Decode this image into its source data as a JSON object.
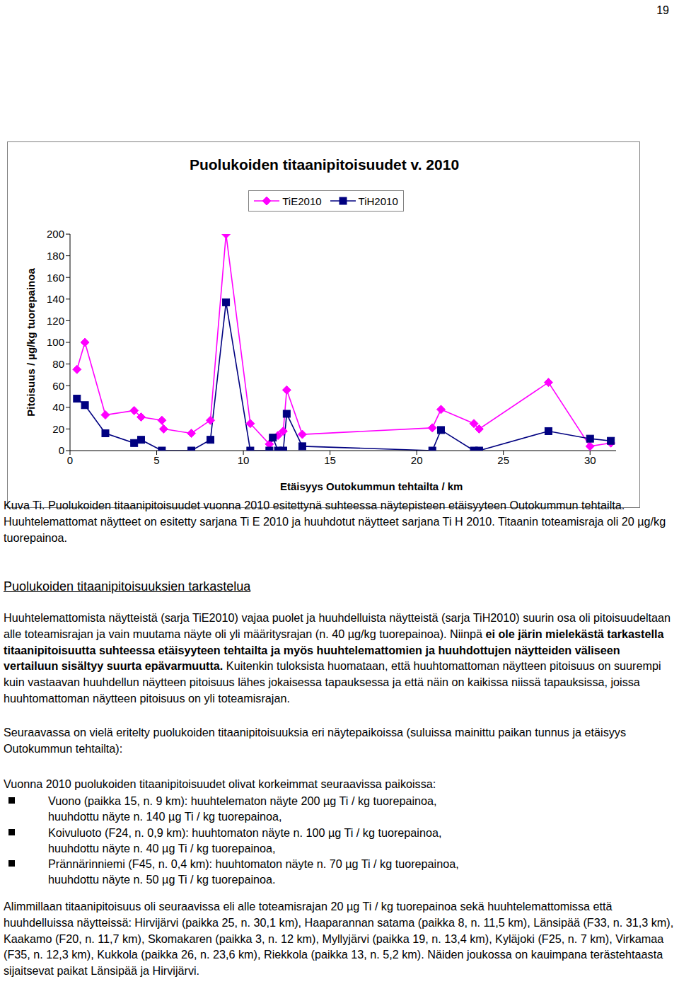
{
  "page_number": "19",
  "chart_data": {
    "type": "line",
    "title": "Puolukoiden titaanipitoisuudet v. 2010",
    "x_label": "Etäisyys Outokummun tehtailta / km",
    "y_label": "Pitoisuus / µg/kg tuorepainoa",
    "xlim": [
      0,
      31.5
    ],
    "xticks": [
      0,
      5,
      10,
      15,
      20,
      25,
      30
    ],
    "ylim": [
      0,
      200
    ],
    "yticks": [
      0,
      20,
      40,
      60,
      80,
      100,
      120,
      140,
      160,
      180,
      200
    ],
    "grid": false,
    "legend": "top",
    "series": [
      {
        "name": "TiE2010",
        "color": "#ff00ff",
        "marker": "diamond",
        "x": [
          0.4,
          0.86,
          2.04,
          3.7,
          4.1,
          5.3,
          5.4,
          7.0,
          8.1,
          9.0,
          10.4,
          11.5,
          12.0,
          12.3,
          12.5,
          13.4,
          20.9,
          21.4,
          23.3,
          23.6,
          27.6,
          30.0,
          31.2
        ],
        "values": [
          75,
          100,
          33,
          37,
          31,
          28,
          20,
          16,
          28,
          200,
          25,
          6,
          14,
          18,
          56,
          15,
          21,
          38,
          25,
          20,
          63,
          4,
          7
        ]
      },
      {
        "name": "TiH2010",
        "color": "#000080",
        "marker": "square",
        "x": [
          0.4,
          0.86,
          2.04,
          3.7,
          4.1,
          5.3,
          7.0,
          8.1,
          9.0,
          10.4,
          11.5,
          11.7,
          12.0,
          12.3,
          12.5,
          13.4,
          20.9,
          21.4,
          23.3,
          23.6,
          27.6,
          30.0,
          31.2
        ],
        "values": [
          48,
          42,
          16,
          7,
          10,
          0,
          0,
          10,
          137,
          0,
          0,
          12,
          0,
          0,
          34,
          4,
          0,
          19,
          0,
          0,
          18,
          11,
          9
        ]
      }
    ]
  },
  "caption": "Kuva Ti. Puolukoiden titaanipitoisuudet vuonna 2010 esitettynä suhteessa näytepisteen etäisyyteen Outokummun tehtailta. Huuhtelemattomat näytteet on esitetty sarjana Ti E 2010 ja huuhdotut näytteet sarjana Ti H 2010. Titaanin toteamisraja oli 20 µg/kg tuorepainoa.",
  "heading": "Puolukoiden titaanipitoisuuksien tarkastelua",
  "paragraphs": [
    [
      {
        "text": "Huuhtelemattomista näytteistä (sarja TiE2010) vajaa puolet ja huuhdelluista näytteistä (sarja TiH2010) suurin osa oli pitoisuudeltaan alle toteamisrajan ja vain muutama näyte oli yli määritysrajan (n. 40 µg/kg tuorepainoa). Niinpä ",
        "bold": false
      },
      {
        "text": "ei ole järin mielekästä tarkastella titaanipitoisuutta suhteessa etäisyyteen tehtailta ja myös huuhtelemattomien ja huuhdottujen näytteiden väliseen vertailuun sisältyy suurta epävarmuutta.",
        "bold": true
      },
      {
        "text": " Kuitenkin tuloksista huomataan, että huuhtomattoman näytteen pitoisuus on suurempi kuin vastaavan huuhdellun näytteen pitoisuus lähes jokaisessa tapauksessa ja että näin on kaikissa niissä tapauksissa, joissa huuhtomattoman näytteen pitoisuus on yli toteamisrajan.",
        "bold": false
      }
    ],
    [
      {
        "text": "Seuraavassa on vielä eritelty puolukoiden titaanipitoisuuksia eri näytepaikoissa (suluissa mainittu paikan tunnus ja etäisyys Outokummun tehtailta):",
        "bold": false
      }
    ]
  ],
  "list_intro": "Vuonna 2010 puolukoiden titaanipitoisuudet olivat korkeimmat seuraavissa paikoissa:",
  "list": [
    [
      "Vuono (paikka 15, n. 9 km): huuhtelematon näyte 200 µg Ti / kg tuorepainoa,",
      "huuhdottu näyte n. 140 µg Ti / kg tuorepainoa,"
    ],
    [
      "Koivuluoto (F24, n. 0,9 km): huuhtomaton näyte n. 100 µg Ti / kg tuorepainoa,",
      "huuhdottu näyte n. 40 µg Ti / kg tuorepainoa,"
    ],
    [
      "Prännärinniemi (F45, n. 0,4 km): huuhtomaton näyte n. 70 µg Ti / kg tuorepainoa,",
      "huuhdottu näyte n. 50 µg Ti / kg tuorepainoa."
    ]
  ],
  "closing": "Alimmillaan titaanipitoisuus oli seuraavissa eli alle toteamisrajan 20 µg Ti / kg tuorepainoa sekä huuhtelemattomissa että huuhdelluissa näytteissä: Hirvijärvi (paikka 25, n. 30,1 km), Haaparannan satama (paikka 8, n. 11,5 km), Länsipää (F33, n. 31,3 km), Kaakamo (F20, n. 11,7 km), Skomakaren (paikka 3, n. 12 km), Myllyjärvi (paikka 19, n. 13,4 km), Kyläjoki (F25, n. 7 km), Virkamaa (F35, n. 12,3 km), Kukkola (paikka 26, n. 23,6 km), Riekkola (paikka 13, n. 5,2 km). Näiden joukossa on kauimpana terästehtaasta sijaitsevat paikat Länsipää ja Hirvijärvi."
}
